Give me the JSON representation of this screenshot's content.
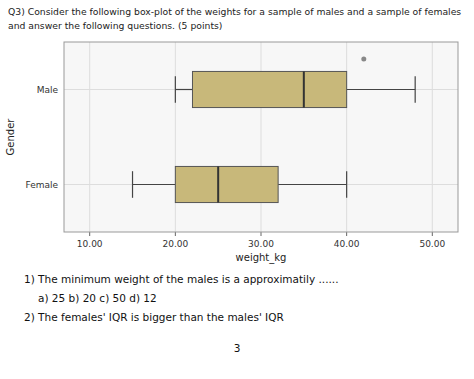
{
  "chart_data": {
    "type": "box",
    "orientation": "horizontal",
    "title": "Q3) Consider the following box-plot of the weights for a sample of males and a sample of females",
    "subtitle": "and answer the following questions. (5 points)",
    "x_label": "weight_kg",
    "y_label": "Gender",
    "categories": [
      "Female",
      "Male"
    ],
    "values": [
      {
        "min": 15,
        "q1": 20,
        "median": 25,
        "q3": 32,
        "max": 40
      },
      {
        "min": 20,
        "q1": 22,
        "median": 35,
        "q3": 40,
        "max": 48,
        "outliers": [
          42
        ]
      }
    ],
    "color": "#c8b87a",
    "xlim": [
      7,
      53
    ],
    "xticks": [
      {
        "value": 10,
        "label": "10.00"
      },
      {
        "value": 20,
        "label": "20.00"
      },
      {
        "value": 30,
        "label": "30.00"
      },
      {
        "value": 40,
        "label": "40.00"
      },
      {
        "value": 50,
        "label": "50.00"
      }
    ],
    "grid": true,
    "annotations": [
      "1)  The minimum weight of the males is a approximatily ......",
      "a)  25          b) 20          c) 50          d) 12",
      "2)  The females' IQR is bigger than the males' IQR",
      "3"
    ]
  }
}
